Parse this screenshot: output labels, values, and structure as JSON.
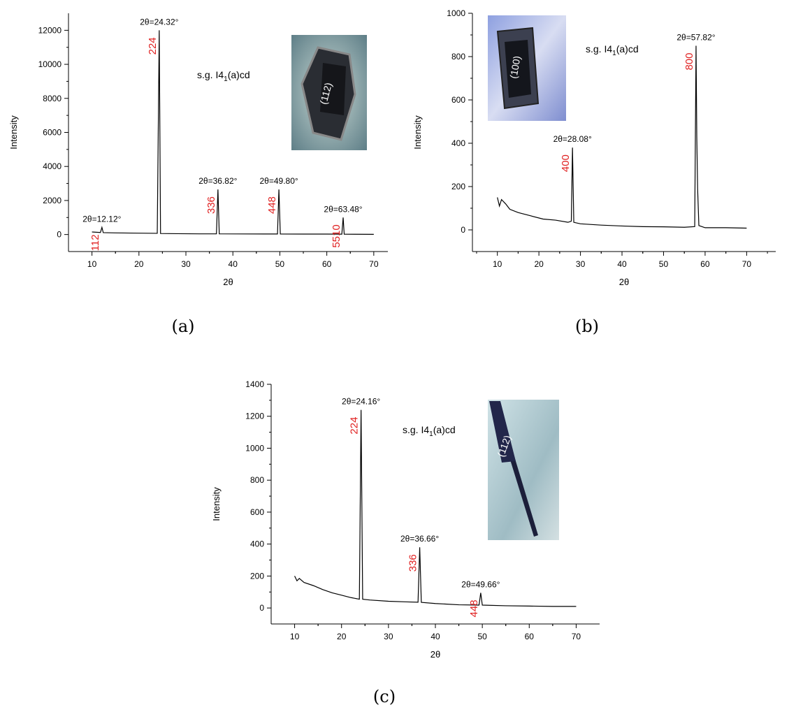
{
  "chart_data": [
    {
      "type": "line",
      "caption": "(a)",
      "xlabel": "2θ",
      "ylabel": "Intensity",
      "xlim": [
        5,
        73
      ],
      "xticks": [
        10,
        20,
        30,
        40,
        50,
        60,
        70
      ],
      "ylim": [
        -1000,
        13000
      ],
      "yticks": [
        0,
        2000,
        4000,
        6000,
        8000,
        10000,
        12000
      ],
      "x": [
        10,
        11.8,
        12.12,
        12.4,
        15,
        20,
        23.9,
        24.32,
        24.6,
        28,
        33,
        36.5,
        36.82,
        37.1,
        42,
        47,
        49.5,
        49.8,
        50.1,
        55,
        60,
        63.2,
        63.48,
        63.7,
        66,
        70
      ],
      "series": [
        {
          "color": "#000000",
          "values": [
            150,
            120,
            420,
            110,
            95,
            80,
            70,
            12000,
            60,
            50,
            40,
            40,
            2650,
            40,
            35,
            30,
            30,
            2650,
            30,
            25,
            25,
            20,
            1000,
            20,
            15,
            10
          ]
        }
      ],
      "annotations": [
        {
          "x": 12.12,
          "label": "2θ=12.12°",
          "hkl": "112"
        },
        {
          "x": 24.32,
          "label": "2θ=24.32°",
          "hkl": "224"
        },
        {
          "x": 36.82,
          "label": "2θ=36.82°",
          "hkl": "336"
        },
        {
          "x": 49.8,
          "label": "2θ=49.80°",
          "hkl": "448"
        },
        {
          "x": 63.48,
          "label": "2θ=63.48°",
          "hkl": "5510"
        }
      ],
      "space_group": {
        "main": "s.g. I4",
        "sub": "1",
        "rest": "(a)cd"
      },
      "photo_label": "(112)"
    },
    {
      "type": "line",
      "caption": "(b)",
      "xlabel": "2θ",
      "ylabel": "Intensity",
      "xlim": [
        4,
        77
      ],
      "xticks": [
        10,
        20,
        30,
        40,
        50,
        60,
        70
      ],
      "ylim": [
        -100,
        1000
      ],
      "yticks": [
        0,
        200,
        400,
        600,
        800,
        1000
      ],
      "x": [
        10,
        10.5,
        11,
        12,
        13,
        15,
        18,
        21,
        24,
        27,
        27.8,
        28.08,
        28.4,
        30,
        35,
        40,
        45,
        50,
        55,
        57.5,
        57.82,
        58.0,
        58.2,
        58.5,
        60,
        65,
        70
      ],
      "series": [
        {
          "color": "#000000",
          "values": [
            150,
            110,
            140,
            120,
            95,
            80,
            65,
            50,
            45,
            35,
            40,
            380,
            35,
            28,
            22,
            18,
            15,
            14,
            12,
            15,
            850,
            430,
            190,
            20,
            10,
            10,
            8
          ]
        }
      ],
      "annotations": [
        {
          "x": 28.08,
          "label": "2θ=28.08°",
          "hkl": "400"
        },
        {
          "x": 57.82,
          "label": "2θ=57.82°",
          "hkl": "800"
        }
      ],
      "space_group": {
        "main": "s.g. I4",
        "sub": "1",
        "rest": "(a)cd"
      },
      "photo_label": "(100)"
    },
    {
      "type": "line",
      "caption": "(c)",
      "xlabel": "2θ",
      "ylabel": "Intensity",
      "xlim": [
        5,
        75
      ],
      "xticks": [
        10,
        20,
        30,
        40,
        50,
        60,
        70
      ],
      "ylim": [
        -100,
        1400
      ],
      "yticks": [
        0,
        200,
        400,
        600,
        800,
        1000,
        1200,
        1400
      ],
      "x": [
        10,
        10.5,
        11,
        12,
        14,
        16,
        18,
        20,
        22,
        23.8,
        24.16,
        24.5,
        26,
        30,
        34,
        36.3,
        36.66,
        37,
        40,
        45,
        49.3,
        49.66,
        50,
        55,
        60,
        65,
        70
      ],
      "series": [
        {
          "color": "#000000",
          "values": [
            200,
            170,
            185,
            160,
            140,
            115,
            95,
            80,
            65,
            55,
            1240,
            55,
            50,
            42,
            38,
            36,
            380,
            35,
            28,
            20,
            18,
            95,
            18,
            14,
            12,
            10,
            10
          ]
        }
      ],
      "annotations": [
        {
          "x": 24.16,
          "label": "2θ=24.16°",
          "hkl": "224"
        },
        {
          "x": 36.66,
          "label": "2θ=36.66°",
          "hkl": "336"
        },
        {
          "x": 49.66,
          "label": "2θ=49.66°",
          "hkl": "448"
        }
      ],
      "space_group": {
        "main": "s.g. I4",
        "sub": "1",
        "rest": "(a)cd"
      },
      "photo_label": "(112)"
    }
  ]
}
